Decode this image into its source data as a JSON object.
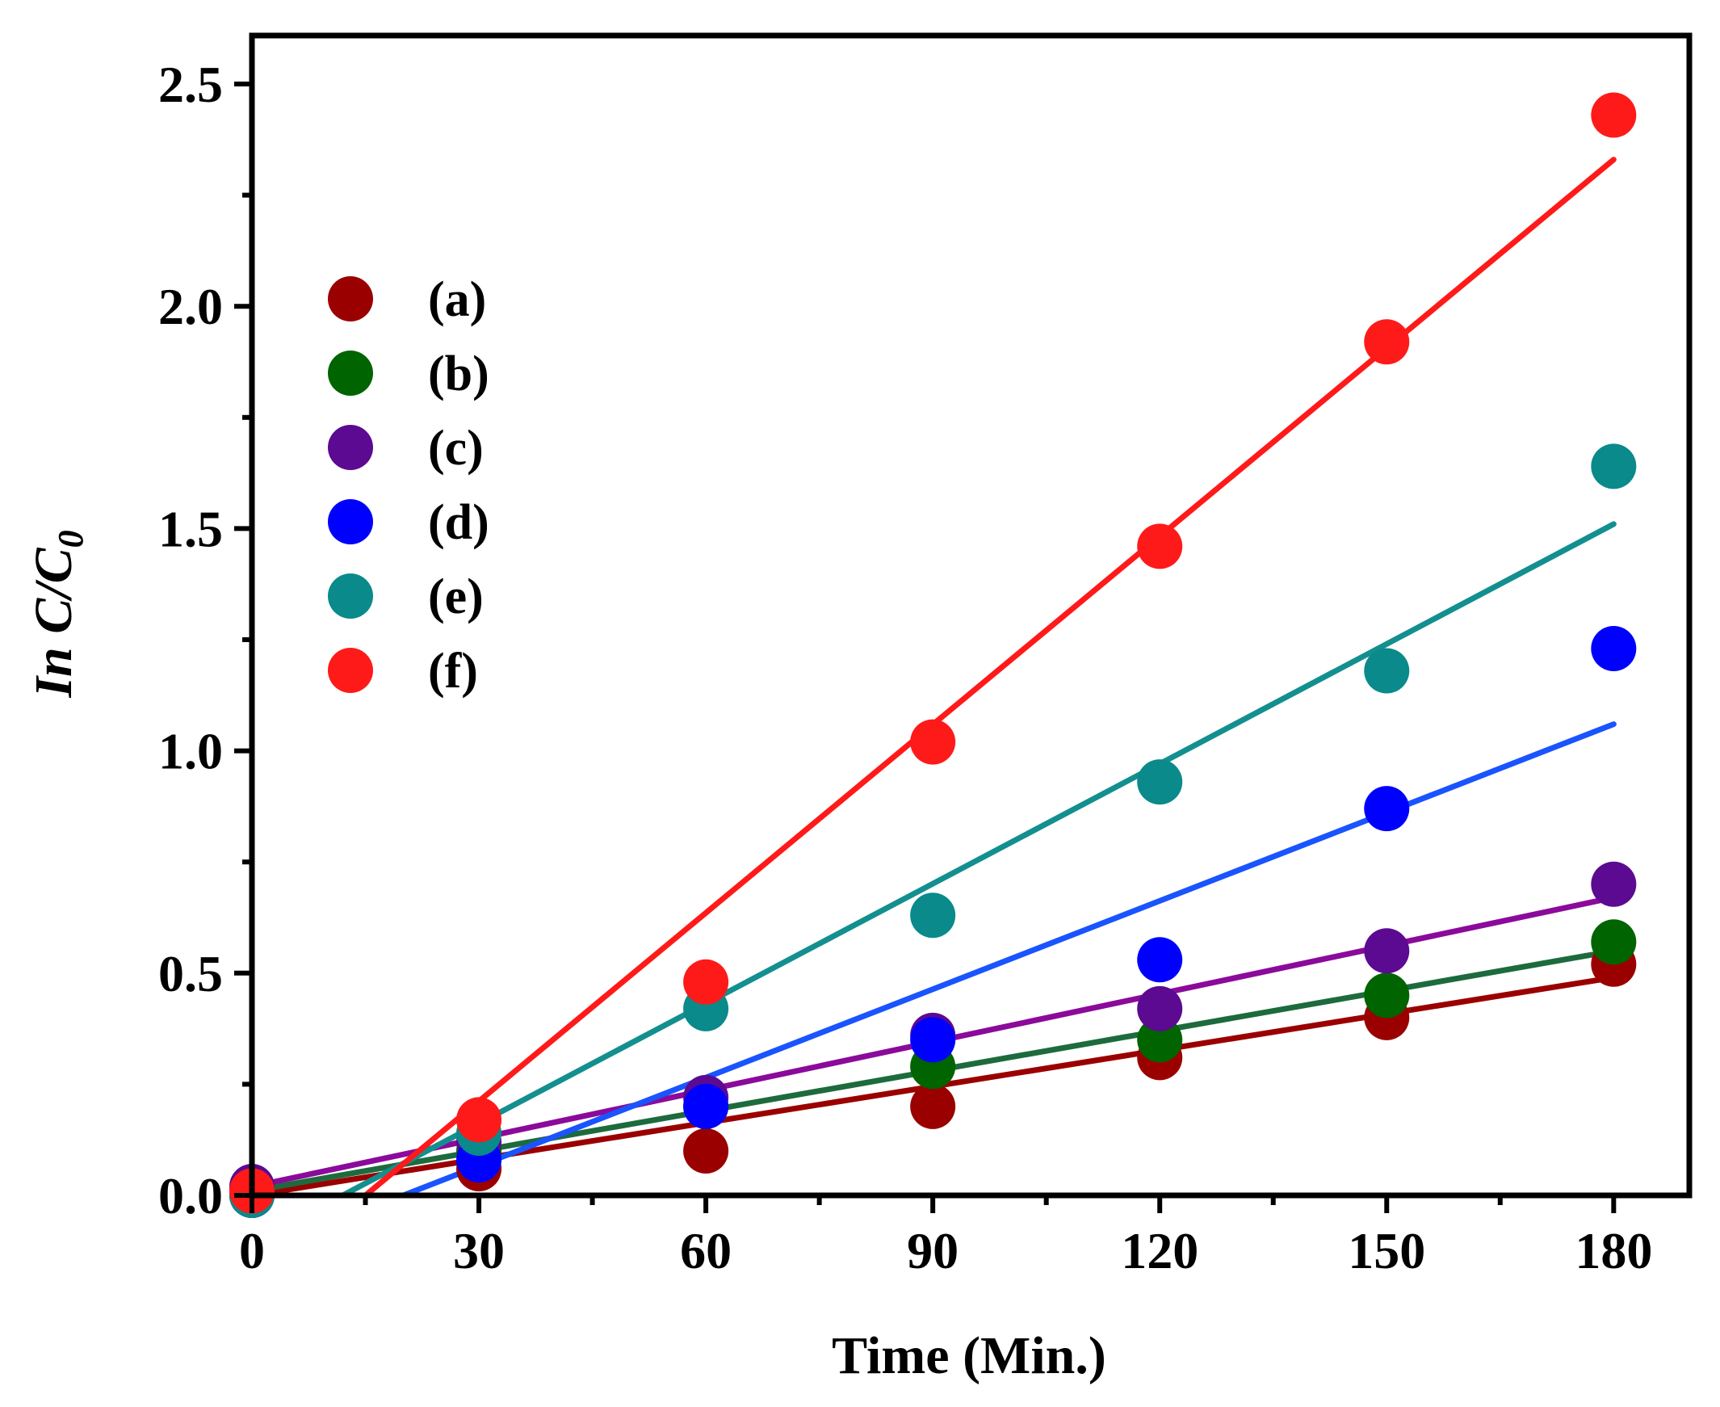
{
  "chart_data": {
    "type": "scatter",
    "title": "",
    "xlabel": "Time (Min.)",
    "ylabel_parts": {
      "lead": "In C/C",
      "subscript": "0"
    },
    "xlim": [
      0,
      190
    ],
    "ylim": [
      0,
      2.5
    ],
    "xticks": [
      0,
      30,
      60,
      90,
      120,
      150,
      180
    ],
    "xtick_labels": [
      "0",
      "30",
      "60",
      "90",
      "120",
      "150",
      "180"
    ],
    "xminor": [
      15,
      45,
      75,
      105,
      135,
      165
    ],
    "yticks": [
      0,
      0.5,
      1.0,
      1.5,
      2.0,
      2.5
    ],
    "ytick_labels": [
      "0.0",
      "0.5",
      "1.0",
      "1.5",
      "2.0",
      "2.5"
    ],
    "legend_position": "upper-left",
    "x": [
      0,
      30,
      60,
      90,
      120,
      150,
      180
    ],
    "series": [
      {
        "name": "(a)",
        "color": "#9b0000",
        "line_color": "#9b0000",
        "values": [
          0.0,
          0.06,
          0.1,
          0.2,
          0.31,
          0.4,
          0.52
        ],
        "fit": {
          "start": [
            0,
            0.0
          ],
          "end": [
            180,
            0.49
          ]
        }
      },
      {
        "name": "(b)",
        "color": "#006400",
        "line_color": "#1d6b3d",
        "values": [
          0.01,
          0.1,
          0.2,
          0.29,
          0.35,
          0.45,
          0.57
        ],
        "fit": {
          "start": [
            0,
            0.01
          ],
          "end": [
            180,
            0.55
          ]
        }
      },
      {
        "name": "(c)",
        "color": "#5b0a91",
        "line_color": "#8b0a9b",
        "values": [
          0.02,
          0.12,
          0.22,
          0.36,
          0.42,
          0.55,
          0.7
        ],
        "fit": {
          "start": [
            0,
            0.02
          ],
          "end": [
            180,
            0.67
          ]
        }
      },
      {
        "name": "(d)",
        "color": "#0000ff",
        "line_color": "#1a54ff",
        "values": [
          0.0,
          0.08,
          0.2,
          0.35,
          0.53,
          0.87,
          1.23
        ],
        "fit": {
          "start": [
            20,
            0.0
          ],
          "end": [
            180,
            1.06
          ]
        }
      },
      {
        "name": "(e)",
        "color": "#0a8a8a",
        "line_color": "#138f8f",
        "values": [
          0.0,
          0.14,
          0.42,
          0.63,
          0.93,
          1.18,
          1.64
        ],
        "fit": {
          "start": [
            12,
            0.0
          ],
          "end": [
            180,
            1.51
          ]
        }
      },
      {
        "name": "(f)",
        "color": "#ff1a1a",
        "line_color": "#ff1a1a",
        "values": [
          0.01,
          0.17,
          0.48,
          1.02,
          1.46,
          1.92,
          2.43
        ],
        "fit": {
          "start": [
            15,
            0.0
          ],
          "end": [
            180,
            2.33
          ]
        }
      }
    ]
  }
}
